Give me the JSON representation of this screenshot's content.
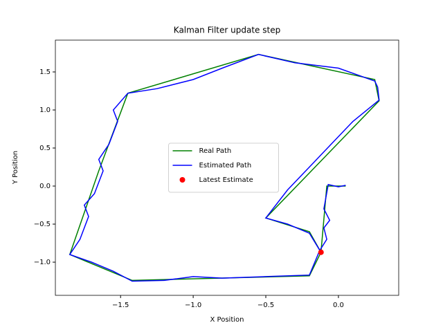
{
  "chart_data": {
    "type": "line",
    "title": "Kalman Filter update step",
    "x_label": "X Position",
    "y_label": "Y Position",
    "xlim": [
      -1.949,
      0.415
    ],
    "ylim": [
      -1.436,
      1.918
    ],
    "xticks": [
      {
        "value": -1.5,
        "label": "−1.5"
      },
      {
        "value": -1.0,
        "label": "−1.0"
      },
      {
        "value": -0.5,
        "label": "−0.5"
      },
      {
        "value": 0.0,
        "label": "0.0"
      }
    ],
    "yticks": [
      {
        "value": -1.0,
        "label": "−1.0"
      },
      {
        "value": -0.5,
        "label": "−0.5"
      },
      {
        "value": 0.0,
        "label": "0.0"
      },
      {
        "value": 0.5,
        "label": "0.5"
      },
      {
        "value": 1.0,
        "label": "1.0"
      },
      {
        "value": 1.5,
        "label": "1.5"
      }
    ],
    "legend": "center",
    "series": [
      {
        "name": "Real Path",
        "color": "#008000",
        "x": [
          0.05,
          -0.08,
          -0.12,
          -0.2,
          -1.42,
          -1.85,
          -1.65,
          -1.45,
          -0.55,
          0.25,
          0.28,
          -0.5,
          -0.2,
          -0.12
        ],
        "values": [
          0.0,
          0.0,
          -0.87,
          -1.18,
          -1.24,
          -0.9,
          0.2,
          1.22,
          1.73,
          1.4,
          1.12,
          -0.42,
          -0.6,
          -0.87
        ]
      },
      {
        "name": "Estimated Path",
        "color": "#0000ff",
        "x": [
          0.05,
          0.0,
          -0.07,
          -0.1,
          -0.06,
          -0.1,
          -0.08,
          -0.13,
          -0.2,
          -0.5,
          -0.8,
          -1.0,
          -1.2,
          -1.42,
          -1.55,
          -1.7,
          -1.85,
          -1.78,
          -1.72,
          -1.75,
          -1.68,
          -1.62,
          -1.65,
          -1.58,
          -1.52,
          -1.55,
          -1.45,
          -1.25,
          -1.0,
          -0.8,
          -0.55,
          -0.3,
          0.0,
          0.25,
          0.27,
          0.28,
          0.1,
          -0.05,
          -0.2,
          -0.35,
          -0.5,
          -0.35,
          -0.2,
          -0.12
        ],
        "values": [
          0.01,
          -0.01,
          0.02,
          -0.3,
          -0.45,
          -0.55,
          -0.7,
          -0.85,
          -1.17,
          -1.19,
          -1.21,
          -1.19,
          -1.24,
          -1.25,
          -1.12,
          -1.0,
          -0.9,
          -0.7,
          -0.4,
          -0.25,
          -0.1,
          0.2,
          0.35,
          0.55,
          0.85,
          1.0,
          1.22,
          1.28,
          1.4,
          1.55,
          1.73,
          1.62,
          1.55,
          1.38,
          1.3,
          1.13,
          0.85,
          0.55,
          0.25,
          -0.05,
          -0.42,
          -0.5,
          -0.62,
          -0.87
        ]
      }
    ],
    "latest_estimate": {
      "name": "Latest Estimate",
      "color": "#ff0000",
      "x": -0.12,
      "y": -0.87
    }
  }
}
